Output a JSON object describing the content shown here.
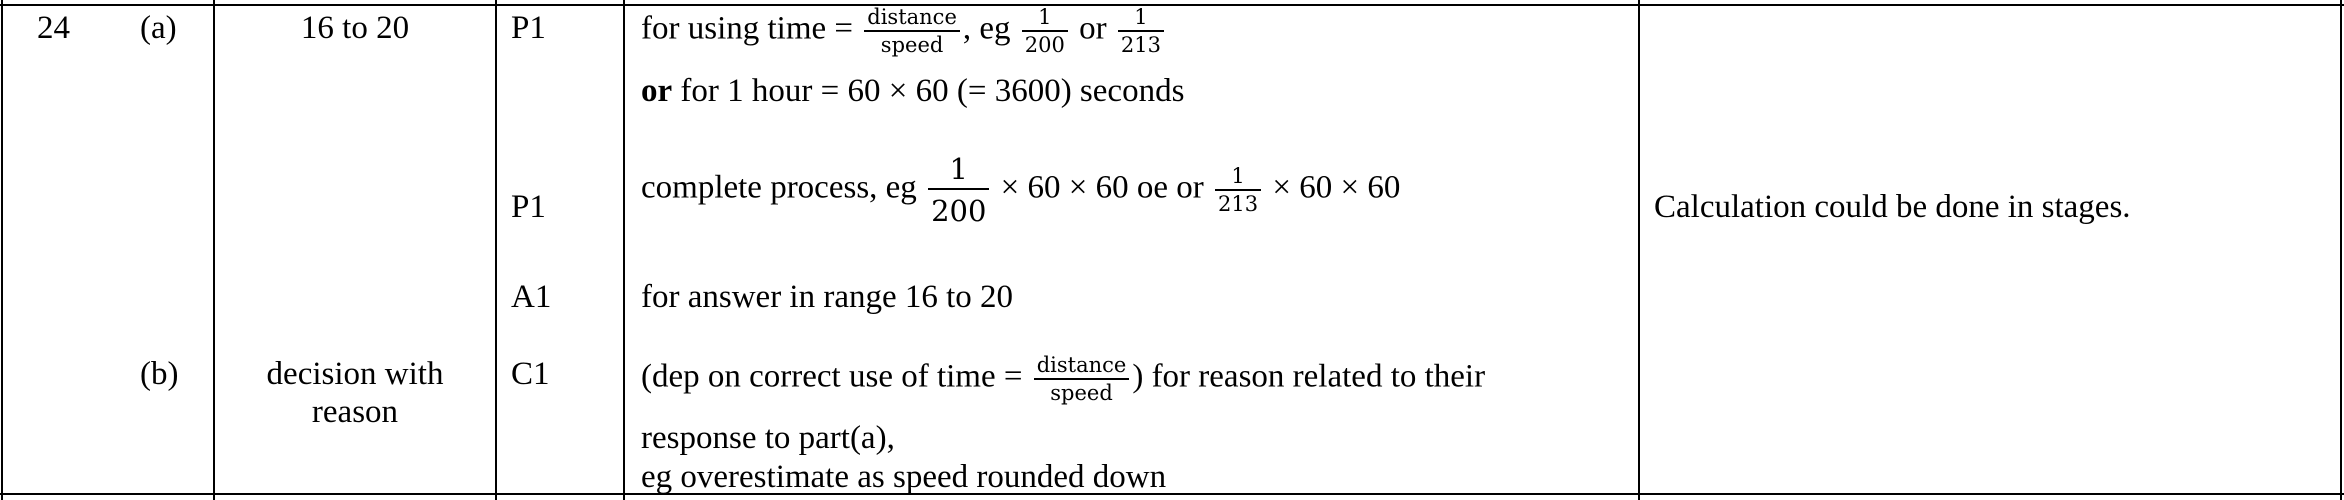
{
  "row": {
    "question_number": "24",
    "a": {
      "part": "(a)",
      "answer": "16 to 20",
      "marks": [
        {
          "code": "P1",
          "line1_prefix": "for using time =",
          "frac_num": "distance",
          "frac_den": "speed",
          "line1_eg": ", eg",
          "eg_frac1_num": "1",
          "eg_frac1_den": "200",
          "or_word": "or",
          "eg_frac2_num": "1",
          "eg_frac2_den": "213",
          "line2_or": "or",
          "line2_rest": " for 1 hour = 60 × 60 (= 3600) seconds"
        },
        {
          "code": "P1",
          "prefix": "complete process, eg",
          "frac1_num": "1",
          "frac1_den": "200",
          "middle": "× 60 × 60 oe  or",
          "frac2_num": "1",
          "frac2_den": "213",
          "suffix": "× 60 × 60"
        },
        {
          "code": "A1",
          "text": "for answer in range 16 to 20"
        }
      ],
      "guidance": "Calculation could be done in stages."
    },
    "b": {
      "part": "(b)",
      "answer_line1": "decision with",
      "answer_line2": "reason",
      "marks": [
        {
          "code": "C1",
          "prefix": "(dep on correct use of time =",
          "frac_num": "distance",
          "frac_den": "speed",
          "suffix": ") for reason related to their",
          "line2": "response to part(a),",
          "line3": "eg overestimate as speed rounded down"
        }
      ]
    }
  }
}
